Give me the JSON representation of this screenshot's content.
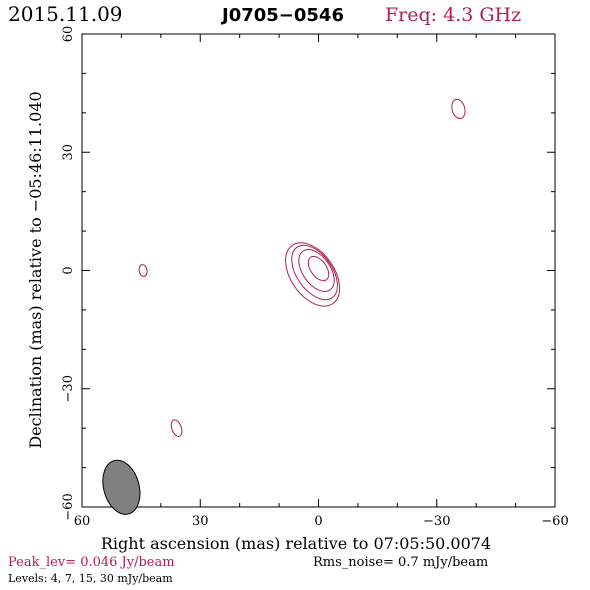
{
  "header": {
    "date": "2015.11.09",
    "source": "J0705−0546",
    "freq": "Freq: 4.3 GHz"
  },
  "chart_data": {
    "type": "contour",
    "xlabel": "Right ascension (mas) relative to 07:05:50.0074",
    "ylabel": "Declination (mas) relative to −05:46:11.040",
    "xlim": [
      60,
      -60
    ],
    "ylim": [
      -60,
      60
    ],
    "x_ticks": [
      60,
      30,
      0,
      -30,
      -60
    ],
    "x_tick_labels": [
      "60",
      "30",
      "0",
      "−30",
      "−60"
    ],
    "y_ticks": [
      -60,
      -30,
      0,
      30,
      60
    ],
    "y_tick_labels": [
      "−60",
      "−30",
      "0",
      "30",
      "60"
    ],
    "contour_color": "#b0204a",
    "beam": {
      "x": 50,
      "y": -55,
      "major": 7,
      "minor": 4.5,
      "pa_deg": -15,
      "fill": "#808080"
    },
    "contours": [
      {
        "x": 0,
        "y": 0.5,
        "rx": 2.0,
        "ry": 3.5,
        "rot": -35
      },
      {
        "x": 0.5,
        "y": 0,
        "rx": 3.5,
        "ry": 6.0,
        "rot": -35
      },
      {
        "x": 1.0,
        "y": -0.5,
        "rx": 4.5,
        "ry": 7.8,
        "rot": -35
      },
      {
        "x": 1.5,
        "y": -1,
        "rx": 5.5,
        "ry": 9.0,
        "rot": -35
      },
      {
        "x": -35.5,
        "y": 41,
        "rx": 1.6,
        "ry": 2.5,
        "rot": -15
      },
      {
        "x": 44.5,
        "y": 0,
        "rx": 1.0,
        "ry": 1.5,
        "rot": -10
      },
      {
        "x": 36,
        "y": -40,
        "rx": 1.2,
        "ry": 2.2,
        "rot": -20
      }
    ]
  },
  "footer": {
    "peak": "Peak_lev=  0.046 Jy/beam",
    "rms": "Rms_noise=  0.7 mJy/beam",
    "levels": "Levels:  4,  7,  15,  30 mJy/beam"
  }
}
